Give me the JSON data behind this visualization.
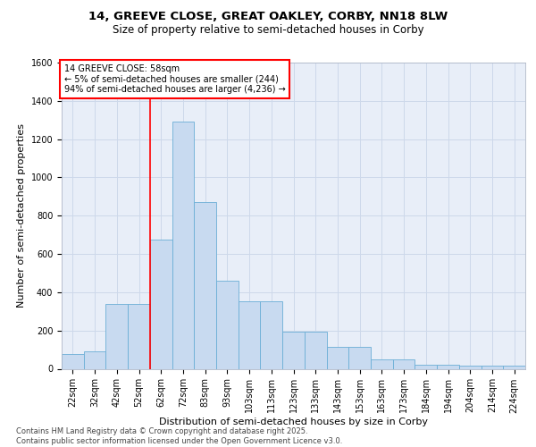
{
  "title_line1": "14, GREEVE CLOSE, GREAT OAKLEY, CORBY, NN18 8LW",
  "title_line2": "Size of property relative to semi-detached houses in Corby",
  "xlabel": "Distribution of semi-detached houses by size in Corby",
  "ylabel": "Number of semi-detached properties",
  "categories": [
    "22sqm",
    "32sqm",
    "42sqm",
    "52sqm",
    "62sqm",
    "72sqm",
    "83sqm",
    "93sqm",
    "103sqm",
    "113sqm",
    "123sqm",
    "133sqm",
    "143sqm",
    "153sqm",
    "163sqm",
    "173sqm",
    "184sqm",
    "194sqm",
    "204sqm",
    "214sqm",
    "224sqm"
  ],
  "values": [
    75,
    90,
    340,
    340,
    675,
    1290,
    870,
    460,
    355,
    355,
    195,
    195,
    115,
    115,
    50,
    50,
    22,
    22,
    15,
    15,
    15
  ],
  "bar_color": "#c8daf0",
  "bar_edge_color": "#6baed6",
  "grid_color": "#cdd8ea",
  "background_color": "#e8eef8",
  "red_line_index": 4,
  "annotation_text": "14 GREEVE CLOSE: 58sqm\n← 5% of semi-detached houses are smaller (244)\n94% of semi-detached houses are larger (4,236) →",
  "ylim": [
    0,
    1600
  ],
  "yticks": [
    0,
    200,
    400,
    600,
    800,
    1000,
    1200,
    1400,
    1600
  ],
  "footer_text": "Contains HM Land Registry data © Crown copyright and database right 2025.\nContains public sector information licensed under the Open Government Licence v3.0.",
  "title_fontsize": 9.5,
  "subtitle_fontsize": 8.5,
  "axis_label_fontsize": 8,
  "tick_fontsize": 7,
  "annotation_fontsize": 7,
  "footer_fontsize": 6
}
